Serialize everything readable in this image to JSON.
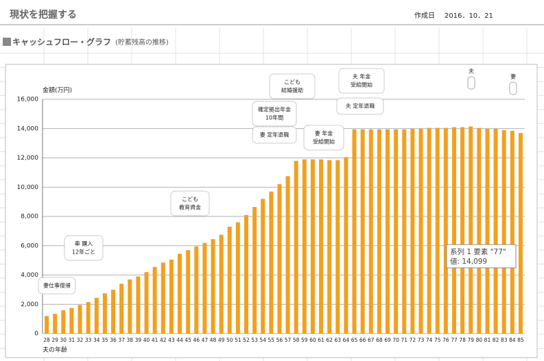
{
  "header": {
    "title": "現状を把握する",
    "created_label": "作成日",
    "created_date": "2016．10．21"
  },
  "section": {
    "title": "キャッシュフロー・グラフ",
    "subtitle": "(貯蓄残高の推移)"
  },
  "chart_data": {
    "type": "bar",
    "y_label": "金額(万円)",
    "x_label": "夫の年齢",
    "categories": [
      28,
      29,
      30,
      31,
      32,
      33,
      34,
      35,
      36,
      37,
      38,
      39,
      40,
      41,
      42,
      43,
      44,
      45,
      46,
      47,
      48,
      49,
      50,
      51,
      52,
      53,
      54,
      55,
      56,
      57,
      58,
      59,
      60,
      61,
      62,
      63,
      64,
      65,
      66,
      67,
      68,
      69,
      70,
      71,
      72,
      73,
      74,
      75,
      76,
      77,
      78,
      79,
      80,
      81,
      82,
      83,
      84,
      85
    ],
    "values": [
      1200,
      1350,
      1600,
      1750,
      1950,
      2150,
      2450,
      2750,
      3000,
      3400,
      3700,
      3900,
      4200,
      4550,
      4850,
      5050,
      5450,
      5700,
      5950,
      6200,
      6450,
      6750,
      7300,
      7600,
      8100,
      8650,
      9200,
      9700,
      10200,
      10750,
      11800,
      11900,
      11900,
      11900,
      11850,
      11850,
      12050,
      13950,
      13950,
      13950,
      13950,
      13950,
      13950,
      13950,
      14000,
      14000,
      14050,
      14050,
      14050,
      14099,
      14100,
      14150,
      14050,
      14000,
      14000,
      13900,
      13850,
      13700
    ],
    "color": "#f2a01e",
    "ylim": [
      0,
      16000
    ],
    "yticks": [
      0,
      {
        "value": 2000,
        "label": "2,000"
      },
      {
        "value": 4000,
        "label": "4,000"
      },
      {
        "value": 6000,
        "label": "6,000"
      },
      {
        "value": 8000,
        "label": "8,000"
      },
      {
        "value": 10000,
        "label": "10,000"
      },
      {
        "value": 12000,
        "label": "12,000"
      },
      {
        "value": 14000,
        "label": "14,000"
      },
      {
        "value": 16000,
        "label": "16,000"
      }
    ],
    "grid": true,
    "annotations": [
      [
        "妻仕事復帰"
      ],
      [
        "車 購入",
        "12年ごと"
      ],
      [
        "こども",
        "教育資金"
      ],
      [
        "確定拠出年金",
        "10年間"
      ],
      [
        "妻 定年退職"
      ],
      [
        "こども",
        "結婚援助"
      ],
      [
        "妻 年金",
        "受給開始"
      ],
      [
        "夫 年金",
        "受給開始"
      ],
      [
        "夫 定年退職"
      ]
    ],
    "markers": [
      "夫",
      "妻"
    ],
    "tooltip": [
      "系列 1 要素 \"77\"",
      "値: 14,099"
    ]
  }
}
